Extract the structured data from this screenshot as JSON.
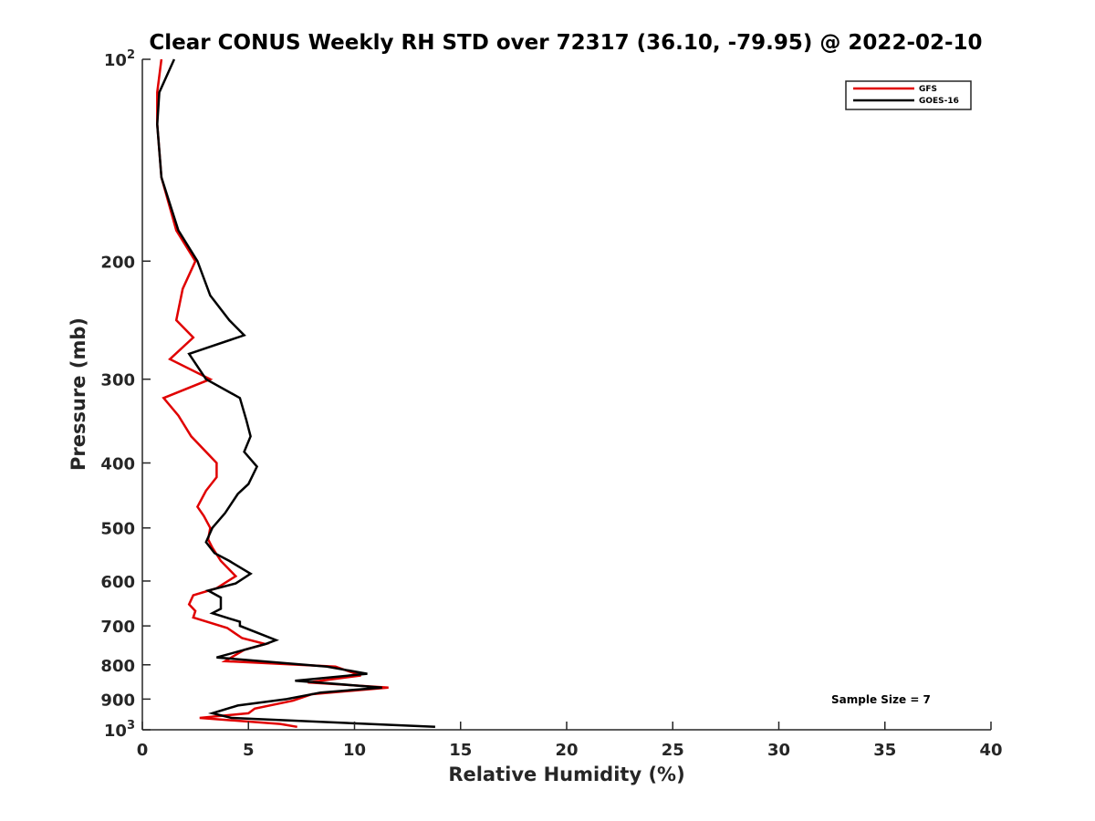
{
  "chart_data": {
    "type": "line",
    "title": "Clear CONUS Weekly RH STD over 72317 (36.10, -79.95) @ 2022-02-10",
    "xlabel": "Relative Humidity (%)",
    "ylabel": "Pressure (mb)",
    "xlim": [
      0,
      40
    ],
    "ylim": [
      100,
      1000
    ],
    "y_scale": "log",
    "y_reversed": true,
    "grid": false,
    "x_ticks": [
      "0",
      "5",
      "10",
      "15",
      "20",
      "25",
      "30",
      "35",
      "40"
    ],
    "y_ticks": [
      {
        "value": 100,
        "label": "10",
        "sup": "2"
      },
      {
        "value": 200,
        "label": "200",
        "sup": ""
      },
      {
        "value": 300,
        "label": "300",
        "sup": ""
      },
      {
        "value": 400,
        "label": "400",
        "sup": ""
      },
      {
        "value": 500,
        "label": "500",
        "sup": ""
      },
      {
        "value": 600,
        "label": "600",
        "sup": ""
      },
      {
        "value": 700,
        "label": "700",
        "sup": ""
      },
      {
        "value": 800,
        "label": "800",
        "sup": ""
      },
      {
        "value": 900,
        "label": "900",
        "sup": ""
      },
      {
        "value": 1000,
        "label": "10",
        "sup": "3"
      }
    ],
    "legend_position": "top-right",
    "annotation": "Sample Size = 7",
    "series": [
      {
        "name": "GFS",
        "color": "#e00000",
        "points": [
          [
            0.9,
            100
          ],
          [
            0.7,
            112
          ],
          [
            0.7,
            125
          ],
          [
            0.9,
            150
          ],
          [
            1.6,
            180
          ],
          [
            2.5,
            200
          ],
          [
            1.9,
            220
          ],
          [
            1.6,
            245
          ],
          [
            2.4,
            260
          ],
          [
            1.3,
            280
          ],
          [
            3.2,
            300
          ],
          [
            1.0,
            320
          ],
          [
            1.7,
            340
          ],
          [
            2.3,
            365
          ],
          [
            3.5,
            400
          ],
          [
            3.5,
            420
          ],
          [
            3.0,
            440
          ],
          [
            2.6,
            465
          ],
          [
            2.9,
            480
          ],
          [
            3.2,
            500
          ],
          [
            3.1,
            520
          ],
          [
            3.3,
            535
          ],
          [
            3.7,
            560
          ],
          [
            4.4,
            590
          ],
          [
            3.5,
            615
          ],
          [
            2.4,
            630
          ],
          [
            2.2,
            650
          ],
          [
            2.5,
            665
          ],
          [
            2.4,
            680
          ],
          [
            4.0,
            705
          ],
          [
            4.7,
            730
          ],
          [
            5.8,
            745
          ],
          [
            4.8,
            760
          ],
          [
            3.9,
            790
          ],
          [
            9.1,
            805
          ],
          [
            10.3,
            830
          ],
          [
            7.8,
            850
          ],
          [
            11.6,
            865
          ],
          [
            8.0,
            885
          ],
          [
            7.1,
            905
          ],
          [
            5.3,
            930
          ],
          [
            5.0,
            945
          ],
          [
            2.7,
            960
          ],
          [
            6.5,
            980
          ],
          [
            7.3,
            990
          ]
        ]
      },
      {
        "name": "GOES-16",
        "color": "#000000",
        "points": [
          [
            1.5,
            100
          ],
          [
            0.8,
            112
          ],
          [
            0.7,
            125
          ],
          [
            0.9,
            150
          ],
          [
            1.7,
            180
          ],
          [
            2.6,
            200
          ],
          [
            3.2,
            225
          ],
          [
            4.1,
            245
          ],
          [
            4.8,
            258
          ],
          [
            2.2,
            275
          ],
          [
            3.0,
            300
          ],
          [
            4.6,
            320
          ],
          [
            4.9,
            345
          ],
          [
            5.1,
            365
          ],
          [
            4.8,
            385
          ],
          [
            5.4,
            405
          ],
          [
            5.0,
            430
          ],
          [
            4.5,
            445
          ],
          [
            3.9,
            475
          ],
          [
            3.3,
            500
          ],
          [
            3.0,
            525
          ],
          [
            3.4,
            545
          ],
          [
            4.1,
            560
          ],
          [
            5.1,
            585
          ],
          [
            4.4,
            605
          ],
          [
            3.1,
            620
          ],
          [
            3.7,
            635
          ],
          [
            3.7,
            660
          ],
          [
            3.3,
            670
          ],
          [
            4.6,
            690
          ],
          [
            4.6,
            700
          ],
          [
            6.3,
            735
          ],
          [
            5.8,
            745
          ],
          [
            3.5,
            780
          ],
          [
            8.7,
            805
          ],
          [
            10.6,
            825
          ],
          [
            7.2,
            845
          ],
          [
            11.3,
            865
          ],
          [
            8.4,
            880
          ],
          [
            6.8,
            900
          ],
          [
            4.5,
            920
          ],
          [
            3.3,
            945
          ],
          [
            4.2,
            960
          ],
          [
            13.8,
            990
          ]
        ]
      }
    ]
  }
}
